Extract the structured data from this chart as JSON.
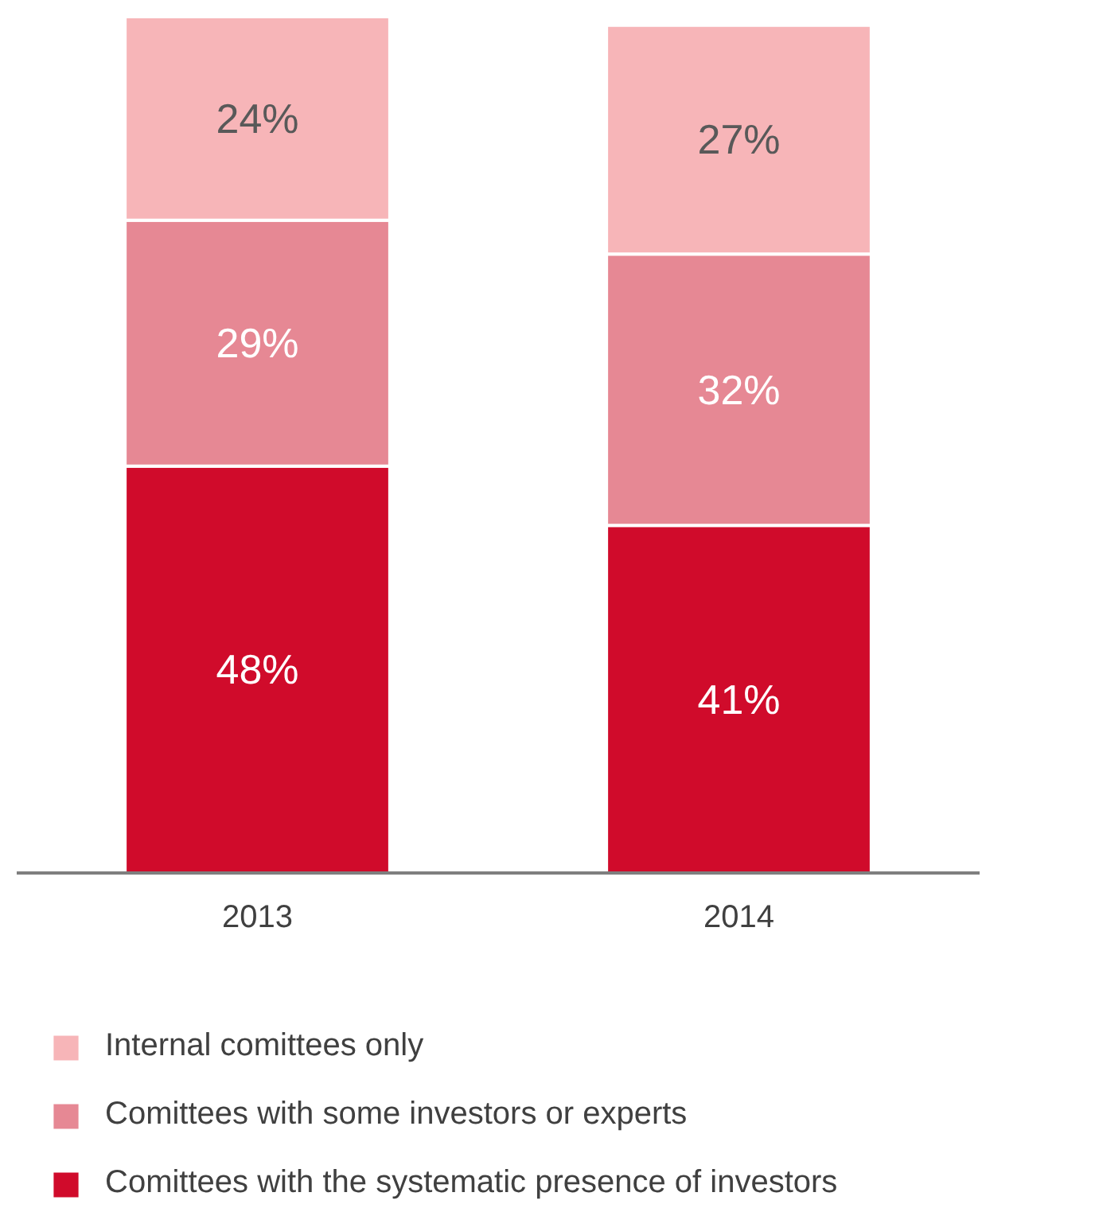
{
  "chart_data": {
    "type": "bar",
    "stacked": true,
    "categories": [
      "2013",
      "2014"
    ],
    "series": [
      {
        "name": "Comittees with the systematic presence of investors",
        "color": "#d00b2b",
        "values": [
          48,
          41
        ],
        "value_labels": [
          "48%",
          "41%"
        ]
      },
      {
        "name": "Comittees with some investors or experts",
        "color": "#e68894",
        "values": [
          29,
          32
        ],
        "value_labels": [
          "29%",
          "32%"
        ]
      },
      {
        "name": "Internal comittees only",
        "color": "#f7b5b8",
        "values": [
          24,
          27
        ],
        "value_labels": [
          "24%",
          "27%"
        ]
      }
    ],
    "legend": "bottom"
  }
}
